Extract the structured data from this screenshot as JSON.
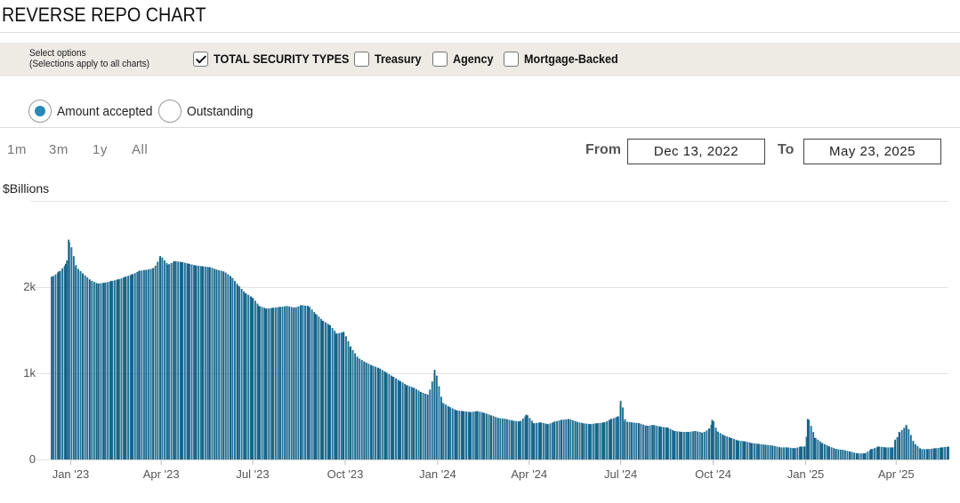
{
  "page": {
    "title": "REVERSE REPO CHART"
  },
  "options": {
    "hint_line1": "Select options",
    "hint_line2": "(Selections apply to all charts)",
    "checkboxes": [
      {
        "label": "TOTAL SECURITY TYPES",
        "checked": true
      },
      {
        "label": "Treasury",
        "checked": false
      },
      {
        "label": "Agency",
        "checked": false
      },
      {
        "label": "Mortgage-Backed",
        "checked": false
      }
    ]
  },
  "radios": [
    {
      "label": "Amount accepted",
      "selected": true
    },
    {
      "label": "Outstanding",
      "selected": false
    }
  ],
  "range_buttons": [
    "1m",
    "3m",
    "1y",
    "All"
  ],
  "date_range": {
    "from_label": "From",
    "from": "Dec 13, 2022",
    "to_label": "To",
    "to": "May 23, 2025"
  },
  "colors": {
    "bar": "#1f6f96",
    "accent": "#2a88b6",
    "options_bg": "#eeeae4"
  },
  "chart_data": {
    "type": "bar",
    "ylabel": "$Billions",
    "ylim": [
      0,
      3000
    ],
    "y_ticks": [
      0,
      1000,
      2000
    ],
    "y_tick_labels": [
      "0",
      "1k",
      "2k"
    ],
    "x_tick_labels": [
      "Jan '23",
      "Apr '23",
      "Jul '23",
      "Oct '23",
      "Jan '24",
      "Apr '24",
      "Jul '24",
      "Oct '24",
      "Jan '25",
      "Apr '25"
    ],
    "x_tick_dates": [
      "2023-01-01",
      "2023-04-01",
      "2023-07-01",
      "2023-10-01",
      "2024-01-01",
      "2024-04-01",
      "2024-07-01",
      "2024-10-01",
      "2025-01-01",
      "2025-04-01"
    ],
    "x_range": [
      "2022-12-13",
      "2025-05-23"
    ],
    "grid": true,
    "series": [
      {
        "values_note": "daily amount accepted, $ billions, sampled approximately",
        "dates": [
          "2022-12-13",
          "2022-12-20",
          "2022-12-27",
          "2022-12-30",
          "2023-01-06",
          "2023-01-13",
          "2023-01-20",
          "2023-01-27",
          "2023-02-03",
          "2023-02-10",
          "2023-02-17",
          "2023-02-24",
          "2023-03-03",
          "2023-03-10",
          "2023-03-17",
          "2023-03-24",
          "2023-03-31",
          "2023-04-07",
          "2023-04-14",
          "2023-04-21",
          "2023-04-28",
          "2023-05-05",
          "2023-05-12",
          "2023-05-19",
          "2023-05-26",
          "2023-06-02",
          "2023-06-09",
          "2023-06-16",
          "2023-06-23",
          "2023-06-30",
          "2023-07-07",
          "2023-07-14",
          "2023-07-21",
          "2023-07-28",
          "2023-08-04",
          "2023-08-11",
          "2023-08-18",
          "2023-08-25",
          "2023-09-01",
          "2023-09-08",
          "2023-09-15",
          "2023-09-22",
          "2023-09-29",
          "2023-10-06",
          "2023-10-13",
          "2023-10-20",
          "2023-10-27",
          "2023-11-03",
          "2023-11-10",
          "2023-11-17",
          "2023-11-24",
          "2023-12-01",
          "2023-12-08",
          "2023-12-15",
          "2023-12-22",
          "2023-12-29",
          "2024-01-05",
          "2024-01-12",
          "2024-01-19",
          "2024-01-26",
          "2024-02-02",
          "2024-02-09",
          "2024-02-16",
          "2024-02-23",
          "2024-03-01",
          "2024-03-08",
          "2024-03-15",
          "2024-03-22",
          "2024-03-29",
          "2024-04-05",
          "2024-04-12",
          "2024-04-19",
          "2024-04-26",
          "2024-05-03",
          "2024-05-10",
          "2024-05-17",
          "2024-05-24",
          "2024-05-31",
          "2024-06-07",
          "2024-06-14",
          "2024-06-21",
          "2024-06-28",
          "2024-07-01",
          "2024-07-05",
          "2024-07-12",
          "2024-07-19",
          "2024-07-26",
          "2024-08-02",
          "2024-08-09",
          "2024-08-16",
          "2024-08-23",
          "2024-08-30",
          "2024-09-06",
          "2024-09-13",
          "2024-09-20",
          "2024-09-27",
          "2024-09-30",
          "2024-10-04",
          "2024-10-11",
          "2024-10-18",
          "2024-10-25",
          "2024-11-01",
          "2024-11-08",
          "2024-11-15",
          "2024-11-22",
          "2024-11-29",
          "2024-12-06",
          "2024-12-13",
          "2024-12-20",
          "2024-12-27",
          "2024-12-31",
          "2025-01-03",
          "2025-01-10",
          "2025-01-17",
          "2025-01-24",
          "2025-01-31",
          "2025-02-07",
          "2025-02-14",
          "2025-02-21",
          "2025-02-28",
          "2025-03-07",
          "2025-03-14",
          "2025-03-21",
          "2025-03-28",
          "2025-03-31",
          "2025-04-04",
          "2025-04-11",
          "2025-04-18",
          "2025-04-25",
          "2025-05-02",
          "2025-05-09",
          "2025-05-16",
          "2025-05-23"
        ],
        "values": [
          2120,
          2180,
          2270,
          2550,
          2230,
          2150,
          2080,
          2040,
          2050,
          2070,
          2090,
          2120,
          2150,
          2190,
          2200,
          2220,
          2360,
          2260,
          2300,
          2290,
          2270,
          2250,
          2240,
          2230,
          2200,
          2180,
          2120,
          2020,
          1930,
          1880,
          1780,
          1750,
          1760,
          1770,
          1780,
          1760,
          1790,
          1780,
          1690,
          1610,
          1560,
          1460,
          1480,
          1300,
          1180,
          1130,
          1090,
          1060,
          1010,
          960,
          910,
          860,
          830,
          780,
          750,
          1040,
          660,
          610,
          570,
          560,
          550,
          560,
          540,
          510,
          480,
          470,
          450,
          440,
          520,
          420,
          430,
          410,
          440,
          460,
          470,
          440,
          420,
          410,
          420,
          430,
          470,
          500,
          680,
          440,
          430,
          420,
          390,
          400,
          380,
          370,
          330,
          320,
          320,
          330,
          310,
          360,
          460,
          330,
          280,
          250,
          220,
          210,
          190,
          180,
          170,
          160,
          140,
          140,
          130,
          150,
          150,
          470,
          250,
          190,
          150,
          120,
          110,
          90,
          70,
          70,
          120,
          150,
          140,
          140,
          230,
          320,
          400,
          190,
          120,
          120,
          130,
          140,
          150
        ]
      }
    ]
  }
}
